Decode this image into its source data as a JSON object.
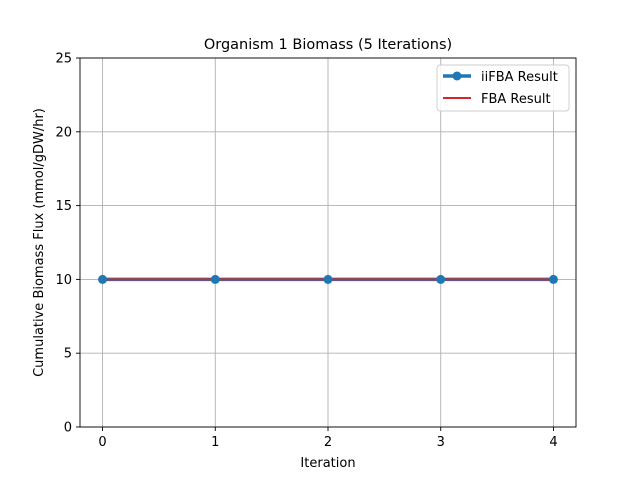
{
  "chart_data": {
    "type": "line",
    "title": "Organism 1 Biomass (5 Iterations)",
    "xlabel": "Iteration",
    "ylabel": "Cumulative Biomass Flux (mmol/gDW/hr)",
    "x": [
      0,
      1,
      2,
      3,
      4
    ],
    "xlim": [
      -0.2,
      4.2
    ],
    "ylim": [
      0,
      25
    ],
    "xticks": [
      "0",
      "1",
      "2",
      "3",
      "4"
    ],
    "yticks": [
      "0",
      "5",
      "10",
      "15",
      "20",
      "25"
    ],
    "grid": true,
    "legend_position": "top-right",
    "series": [
      {
        "name": "iiFBA Result",
        "values": [
          10,
          10,
          10,
          10,
          10
        ],
        "color": "#1f77b4",
        "marker": "circle"
      },
      {
        "name": "FBA Result",
        "values": [
          10,
          10,
          10,
          10,
          10
        ],
        "color": "#d62728",
        "marker": "none"
      }
    ]
  }
}
